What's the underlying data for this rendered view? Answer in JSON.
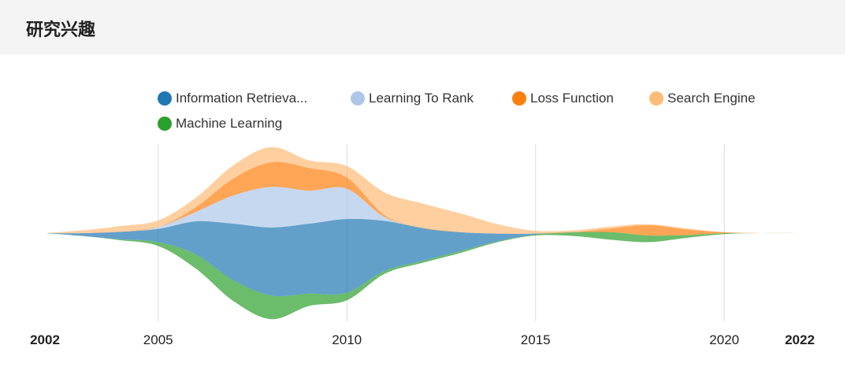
{
  "header": {
    "title": "研究兴趣"
  },
  "legend": [
    {
      "label": "Information Retrieva...",
      "color": "#1f77b4"
    },
    {
      "label": "Learning To Rank",
      "color": "#aec7e8"
    },
    {
      "label": "Loss Function",
      "color": "#ff7f0e"
    },
    {
      "label": "Search Engine",
      "color": "#ffbb78"
    },
    {
      "label": "Machine Learning",
      "color": "#2ca02c"
    }
  ],
  "chart_data": {
    "type": "area",
    "variant": "streamgraph",
    "title": "",
    "xlabel": "",
    "ylabel": "",
    "grid": true,
    "legend_position": "top",
    "xlim": [
      2002,
      2022
    ],
    "x_ticks": [
      {
        "value": 2002,
        "label": "2002",
        "bold": true
      },
      {
        "value": 2005,
        "label": "2005",
        "bold": false
      },
      {
        "value": 2010,
        "label": "2010",
        "bold": false
      },
      {
        "value": 2015,
        "label": "2015",
        "bold": false
      },
      {
        "value": 2020,
        "label": "2020",
        "bold": false
      },
      {
        "value": 2022,
        "label": "2022",
        "bold": true
      }
    ],
    "gridlines_x": [
      2005,
      2010,
      2015,
      2020
    ],
    "x": [
      2002,
      2003,
      2004,
      2005,
      2006,
      2007,
      2008,
      2009,
      2010,
      2011,
      2012,
      2013,
      2014,
      2015,
      2016,
      2017,
      2018,
      2019,
      2020,
      2021,
      2022
    ],
    "series": [
      {
        "name": "Machine Learning",
        "color": "#2ca02c",
        "opacity": 0.7,
        "values": [
          0,
          0,
          0.1,
          0.4,
          1.5,
          2.2,
          2.5,
          1.3,
          0.8,
          0.3,
          0.2,
          0.2,
          0.1,
          0.1,
          0.4,
          0.8,
          0.7,
          0.3,
          0.1,
          0,
          0
        ]
      },
      {
        "name": "Information Retrieva...",
        "color": "#1f77b4",
        "opacity": 0.7,
        "values": [
          0,
          0.3,
          0.8,
          1.4,
          3.5,
          6.0,
          7.2,
          7.4,
          7.8,
          5.3,
          3.5,
          2.0,
          0.8,
          0.1,
          0,
          0,
          0,
          0,
          0,
          0,
          0
        ]
      },
      {
        "name": "Learning To Rank",
        "color": "#aec7e8",
        "opacity": 0.7,
        "values": [
          0,
          0,
          0,
          0.2,
          1.0,
          3.0,
          4.3,
          3.5,
          3.2,
          0.4,
          0,
          0,
          0,
          0,
          0,
          0,
          0,
          0,
          0,
          0,
          0
        ]
      },
      {
        "name": "Loss Function",
        "color": "#ff7f0e",
        "opacity": 0.7,
        "values": [
          0,
          0,
          0,
          0,
          0.5,
          1.8,
          2.6,
          2.4,
          1.2,
          0.2,
          0,
          0,
          0,
          0,
          0,
          0.4,
          1.1,
          0.6,
          0.1,
          0,
          0
        ]
      },
      {
        "name": "Search Engine",
        "color": "#ffbb78",
        "opacity": 0.7,
        "values": [
          0,
          0.3,
          0.6,
          0.7,
          1.0,
          1.4,
          1.6,
          0.8,
          1.2,
          2.4,
          2.6,
          2.0,
          1.0,
          0.3,
          0.2,
          0.2,
          0.1,
          0.1,
          0,
          0,
          0
        ]
      }
    ]
  }
}
